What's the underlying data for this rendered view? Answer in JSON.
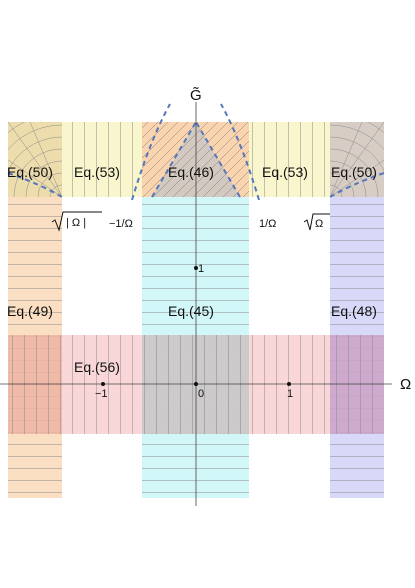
{
  "axes": {
    "x_name": "Ω",
    "y_name": "G̃",
    "xlim": [
      -2.03,
      1.98
    ],
    "ylim": [
      -1.28,
      2.8
    ]
  },
  "ticks": {
    "x": [
      {
        "value": -1,
        "label": "−1"
      },
      {
        "value": 0,
        "label": "0"
      },
      {
        "value": 1,
        "label": "1"
      }
    ],
    "y": [
      {
        "value": 1,
        "label": "1"
      }
    ]
  },
  "region_labels": {
    "eq50_left": "Eq.(50)",
    "eq53_left": "Eq.(53)",
    "eq46": "Eq.(46)",
    "eq53_right": "Eq.(53)",
    "eq50_right": "Eq.(50)",
    "eq49": "Eq.(49)",
    "eq45": "Eq.(45)",
    "eq48": "Eq.(48)",
    "eq56": "Eq.(56)"
  },
  "boundary_labels": {
    "sqrt_abs_omega": "| Ω |",
    "minus_inv_omega": "−1/Ω",
    "inv_omega": "1/Ω",
    "sqrt_omega": "Ω"
  },
  "colors": {
    "orange": "#f9c99a",
    "yellow": "#f8f5c4",
    "cyan": "#cdf6f8",
    "blue": "#cbcbf6",
    "pink": "#f6c6c9",
    "gray": "#c9c9c9",
    "curve": "#5577bb"
  }
}
